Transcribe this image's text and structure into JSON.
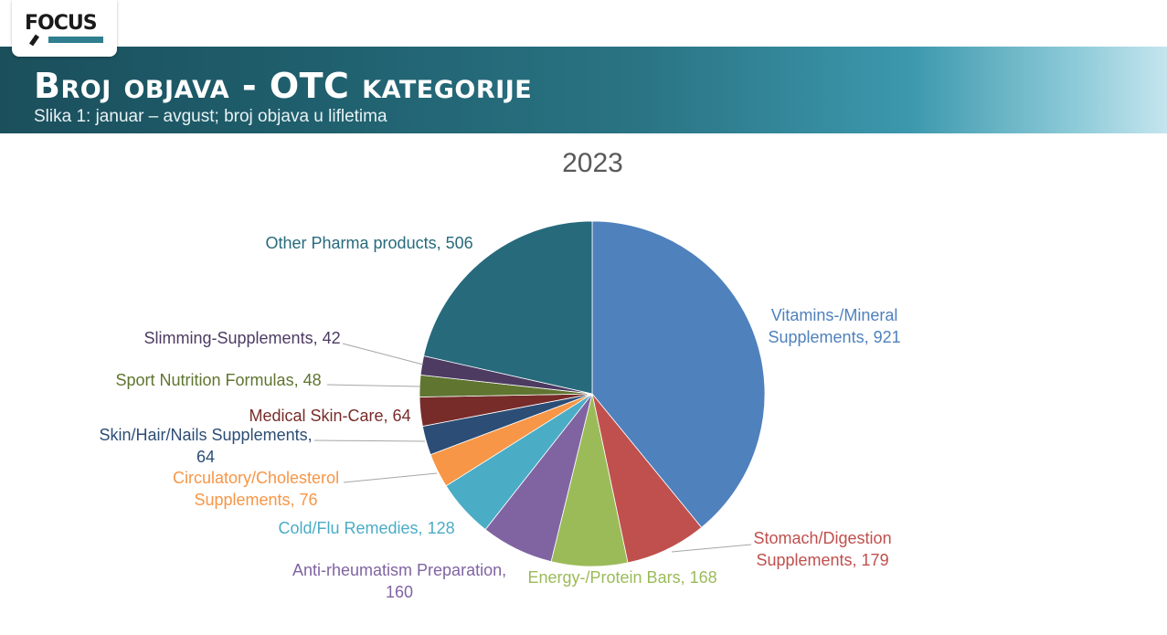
{
  "header": {
    "logo_text": "FOCUS",
    "title": "Broj objava - OTC kategorije",
    "subtitle": "Slika 1: januar – avgust; broj objava u lifletima"
  },
  "colors": {
    "header_dark": "#1b4f5c",
    "header_light": "#c5e5ee"
  },
  "chart_data": {
    "type": "pie",
    "title": "2023",
    "slices": [
      {
        "name": "Vitamins-/Mineral Supplements",
        "value": 921,
        "color": "#4f81bd",
        "label_lines": [
          "Vitamins-/Mineral",
          "Supplements, 921"
        ]
      },
      {
        "name": "Stomach/Digestion Supplements",
        "value": 179,
        "color": "#c0504d",
        "label_lines": [
          "Stomach/Digestion",
          "Supplements, 179"
        ]
      },
      {
        "name": "Energy-/Protein Bars",
        "value": 168,
        "color": "#9bbb59",
        "label_lines": [
          "Energy-/Protein Bars, 168"
        ]
      },
      {
        "name": "Anti-rheumatism Preparation",
        "value": 160,
        "color": "#8064a2",
        "label_lines": [
          "Anti-rheumatism Preparation,",
          "160"
        ]
      },
      {
        "name": "Cold/Flu Remedies",
        "value": 128,
        "color": "#4bacc6",
        "label_lines": [
          "Cold/Flu Remedies, 128"
        ]
      },
      {
        "name": "Circulatory/Cholesterol Supplements",
        "value": 76,
        "color": "#f79646",
        "label_lines": [
          "Circulatory/Cholesterol",
          "Supplements, 76"
        ]
      },
      {
        "name": "Skin/Hair/Nails Supplements",
        "value": 64,
        "color": "#2c4d75",
        "label_lines": [
          "Skin/Hair/Nails Supplements,",
          "64"
        ]
      },
      {
        "name": "Medical Skin-Care",
        "value": 64,
        "color": "#772c2a",
        "label_lines": [
          "Medical Skin-Care, 64"
        ]
      },
      {
        "name": "Sport Nutrition Formulas",
        "value": 48,
        "color": "#5f7530",
        "label_lines": [
          "Sport Nutrition Formulas, 48"
        ]
      },
      {
        "name": "Slimming-Supplements",
        "value": 42,
        "color": "#4d3b62",
        "label_lines": [
          "Slimming-Supplements, 42"
        ]
      },
      {
        "name": "Other Pharma products",
        "value": 506,
        "color": "#276a7c",
        "label_lines": [
          "Other Pharma products, 506"
        ]
      }
    ]
  }
}
